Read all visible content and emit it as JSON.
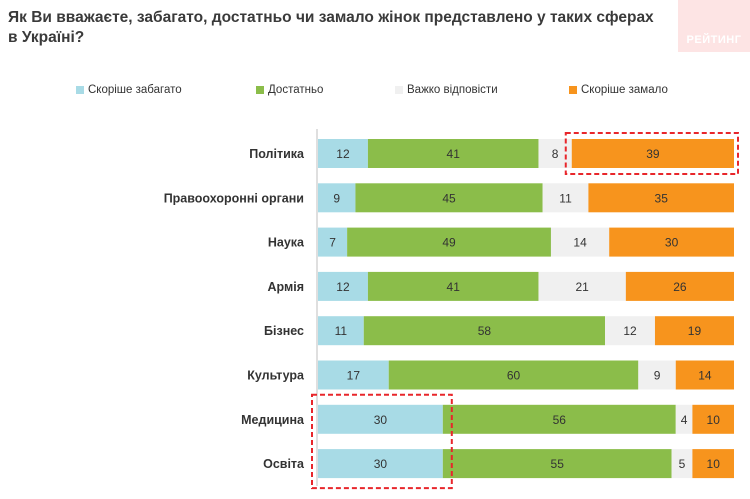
{
  "title": "Як Ви вважаєте, забагато, достатньо чи замало жінок представлено у таких сферах в Україні?",
  "logo_text": "РЕЙТИНГ",
  "chart_data": {
    "type": "bar",
    "orientation": "horizontal",
    "stacked": true,
    "categories": [
      "Політика",
      "Правоохоронні органи",
      "Наука",
      "Армія",
      "Бізнес",
      "Культура",
      "Медицина",
      "Освіта"
    ],
    "series": [
      {
        "name": "Скоріше забагато",
        "color": "#a8dbe6",
        "values": [
          12,
          9,
          7,
          12,
          11,
          17,
          30,
          30
        ]
      },
      {
        "name": "Достатньо",
        "color": "#8bbd4a",
        "values": [
          41,
          45,
          49,
          41,
          58,
          60,
          56,
          55
        ]
      },
      {
        "name": "Важко відповісти",
        "color": "#f0f0f0",
        "values": [
          8,
          11,
          14,
          21,
          12,
          9,
          4,
          5
        ]
      },
      {
        "name": "Скоріше замало",
        "color": "#f7941d",
        "values": [
          39,
          35,
          30,
          26,
          19,
          14,
          10,
          10
        ]
      }
    ],
    "xlim": [
      0,
      100
    ],
    "unit": "%",
    "legend_position": "top",
    "highlights": [
      {
        "category": "Політика",
        "series": "Скоріше замало",
        "style": "dashed-red-box"
      },
      {
        "categories": [
          "Медицина",
          "Освіта"
        ],
        "series": "Скоріше забагато",
        "style": "dashed-red-box"
      }
    ]
  }
}
